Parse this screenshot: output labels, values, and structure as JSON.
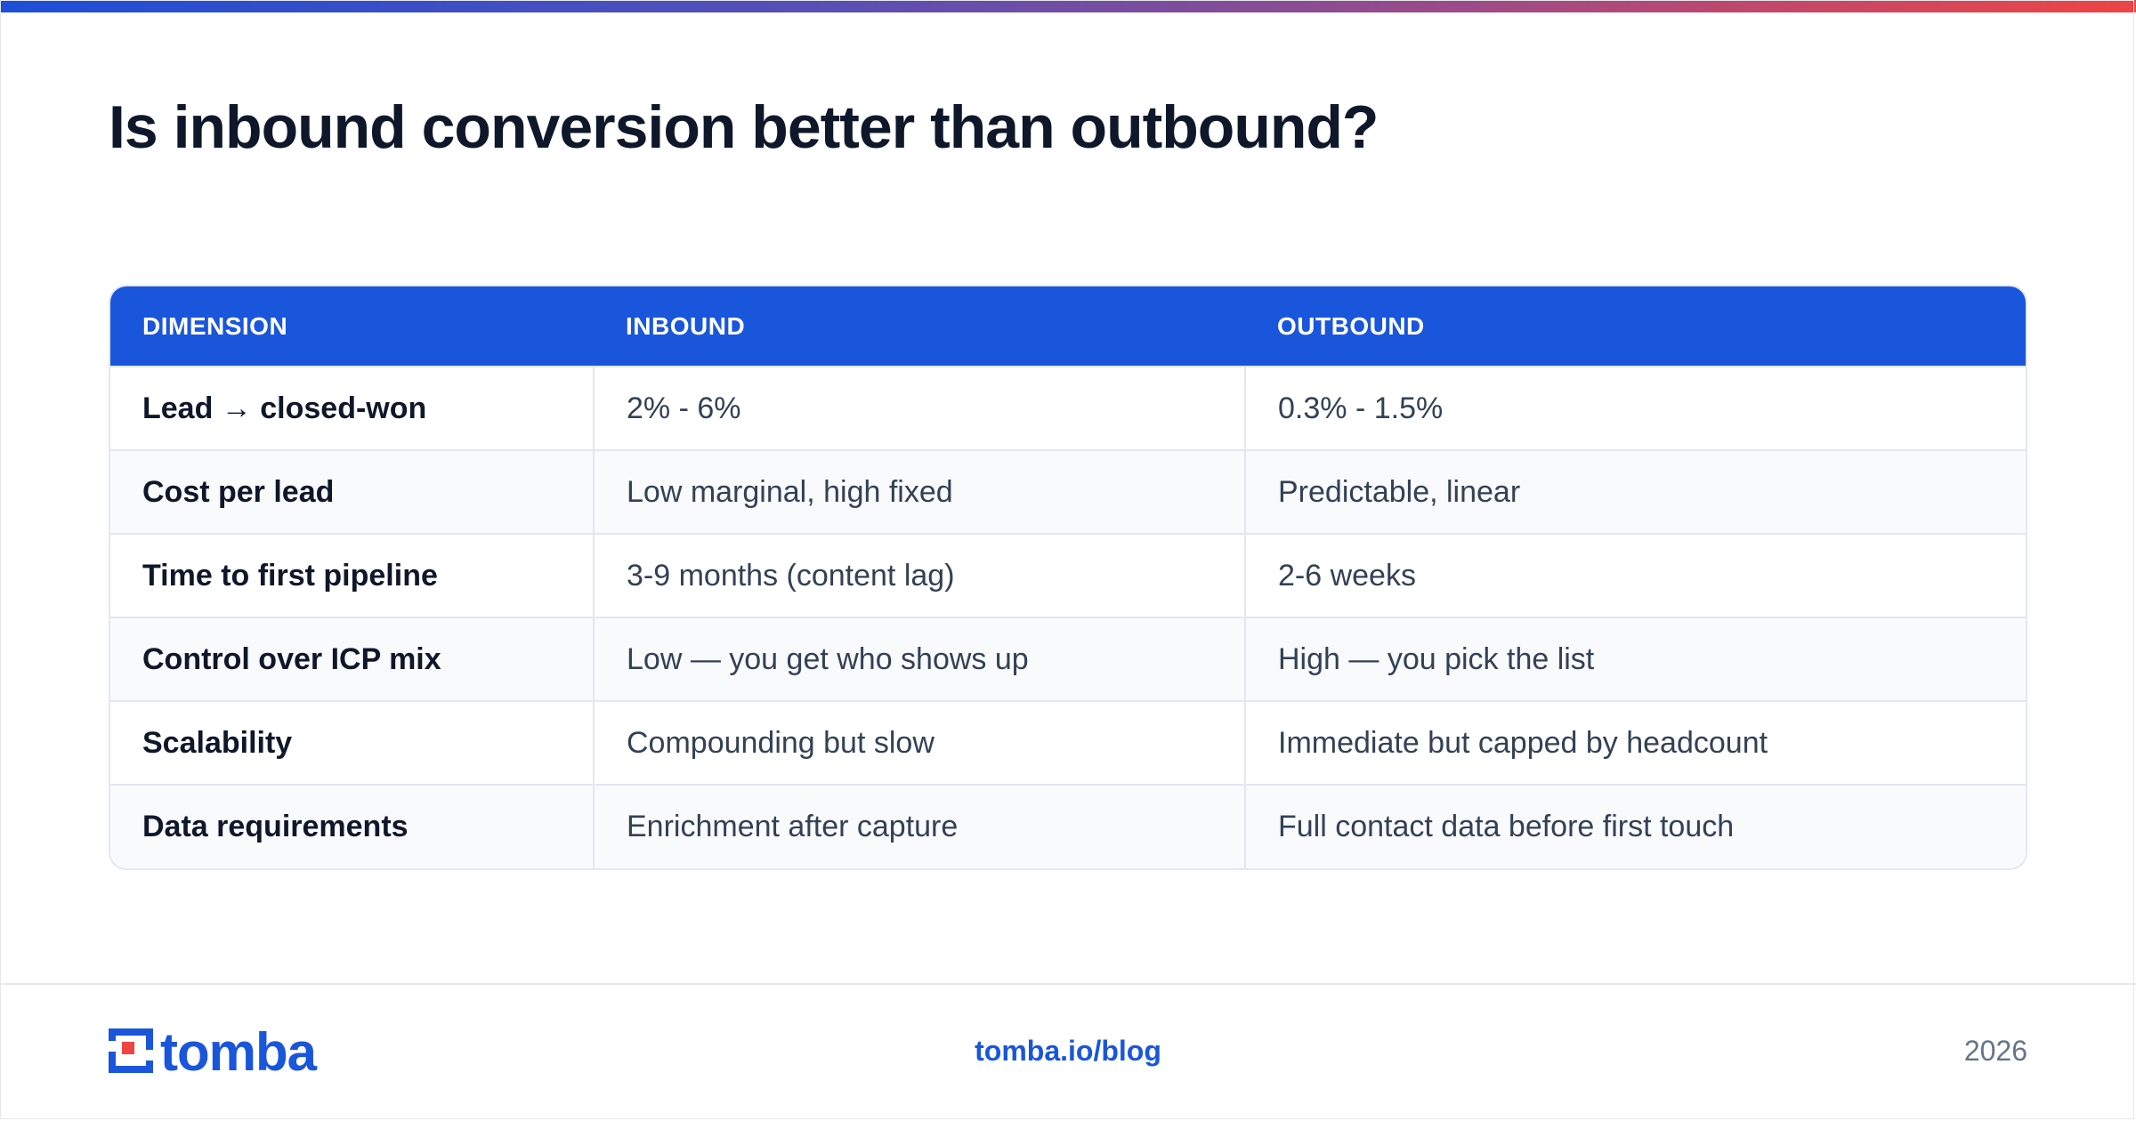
{
  "title": "Is inbound conversion better than outbound?",
  "table": {
    "headers": [
      "DIMENSION",
      "INBOUND",
      "OUTBOUND"
    ],
    "rows": [
      {
        "dimension": "Lead → closed-won",
        "inbound": "2% - 6%",
        "outbound": "0.3% - 1.5%"
      },
      {
        "dimension": "Cost per lead",
        "inbound": "Low marginal, high fixed",
        "outbound": "Predictable, linear"
      },
      {
        "dimension": "Time to first pipeline",
        "inbound": "3-9 months (content lag)",
        "outbound": "2-6 weeks"
      },
      {
        "dimension": "Control over ICP mix",
        "inbound": "Low — you get who shows up",
        "outbound": "High — you pick the list"
      },
      {
        "dimension": "Scalability",
        "inbound": "Compounding but slow",
        "outbound": "Immediate but capped by headcount"
      },
      {
        "dimension": "Data requirements",
        "inbound": "Enrichment after capture",
        "outbound": "Full contact data before first touch"
      }
    ]
  },
  "footer": {
    "logo_text": "tomba",
    "url": "tomba.io/blog",
    "year": "2026"
  },
  "colors": {
    "accent": "#1a56db",
    "logo_red": "#ef4444",
    "gradient_start": "#1d4ed8",
    "gradient_end": "#ef4444"
  },
  "icons": {
    "logo_mark": "tomba-logo-icon"
  }
}
